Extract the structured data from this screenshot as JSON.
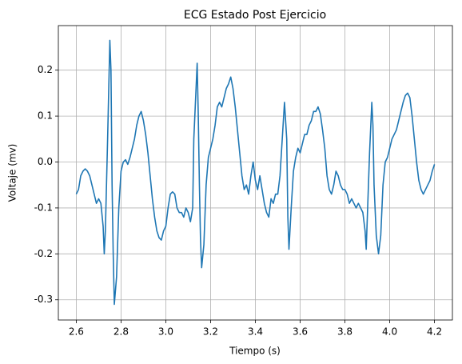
{
  "chart_data": {
    "type": "line",
    "title": "ECG Estado Post Ejercicio",
    "x_label": "Tiempo (s)",
    "y_label": "Voltaje (mv)",
    "x": [
      2.6,
      2.61,
      2.62,
      2.63,
      2.64,
      2.65,
      2.66,
      2.67,
      2.68,
      2.69,
      2.7,
      2.71,
      2.72,
      2.725,
      2.73,
      2.74,
      2.75,
      2.755,
      2.76,
      2.765,
      2.77,
      2.78,
      2.79,
      2.8,
      2.81,
      2.82,
      2.83,
      2.84,
      2.85,
      2.86,
      2.87,
      2.88,
      2.89,
      2.9,
      2.91,
      2.92,
      2.93,
      2.94,
      2.95,
      2.96,
      2.97,
      2.98,
      2.99,
      3.0,
      3.01,
      3.02,
      3.03,
      3.04,
      3.05,
      3.06,
      3.07,
      3.08,
      3.09,
      3.1,
      3.11,
      3.12,
      3.125,
      3.14,
      3.145,
      3.15,
      3.155,
      3.16,
      3.17,
      3.18,
      3.19,
      3.2,
      3.21,
      3.22,
      3.23,
      3.24,
      3.25,
      3.26,
      3.27,
      3.28,
      3.29,
      3.3,
      3.31,
      3.32,
      3.33,
      3.34,
      3.35,
      3.36,
      3.37,
      3.38,
      3.39,
      3.4,
      3.41,
      3.42,
      3.43,
      3.44,
      3.45,
      3.46,
      3.47,
      3.48,
      3.49,
      3.5,
      3.51,
      3.52,
      3.53,
      3.54,
      3.545,
      3.55,
      3.56,
      3.57,
      3.58,
      3.59,
      3.6,
      3.61,
      3.62,
      3.63,
      3.64,
      3.65,
      3.66,
      3.67,
      3.68,
      3.69,
      3.7,
      3.71,
      3.72,
      3.73,
      3.74,
      3.75,
      3.76,
      3.77,
      3.78,
      3.79,
      3.8,
      3.81,
      3.82,
      3.83,
      3.84,
      3.85,
      3.86,
      3.88,
      3.89,
      3.895,
      3.9,
      3.91,
      3.92,
      3.925,
      3.93,
      3.94,
      3.95,
      3.96,
      3.97,
      3.98,
      3.99,
      4.0,
      4.01,
      4.02,
      4.03,
      4.04,
      4.05,
      4.06,
      4.07,
      4.08,
      4.09,
      4.1,
      4.11,
      4.12,
      4.13,
      4.14,
      4.15,
      4.16,
      4.17,
      4.18,
      4.19,
      4.2
    ],
    "series": [
      {
        "name": "ECG",
        "color": "#1f77b4",
        "values": [
          -0.07,
          -0.06,
          -0.03,
          -0.02,
          -0.015,
          -0.02,
          -0.03,
          -0.05,
          -0.07,
          -0.09,
          -0.08,
          -0.09,
          -0.14,
          -0.2,
          -0.15,
          0.05,
          0.265,
          0.2,
          -0.05,
          -0.2,
          -0.31,
          -0.25,
          -0.1,
          -0.02,
          0.0,
          0.005,
          -0.005,
          0.01,
          0.03,
          0.05,
          0.08,
          0.1,
          0.11,
          0.09,
          0.06,
          0.02,
          -0.03,
          -0.08,
          -0.12,
          -0.15,
          -0.165,
          -0.17,
          -0.15,
          -0.14,
          -0.1,
          -0.07,
          -0.065,
          -0.07,
          -0.1,
          -0.11,
          -0.11,
          -0.12,
          -0.1,
          -0.11,
          -0.13,
          -0.1,
          0.05,
          0.215,
          0.1,
          -0.05,
          -0.17,
          -0.23,
          -0.18,
          -0.05,
          0.01,
          0.03,
          0.05,
          0.08,
          0.12,
          0.13,
          0.12,
          0.14,
          0.16,
          0.17,
          0.185,
          0.16,
          0.12,
          0.07,
          0.02,
          -0.03,
          -0.06,
          -0.05,
          -0.07,
          -0.03,
          0.0,
          -0.04,
          -0.06,
          -0.03,
          -0.06,
          -0.09,
          -0.11,
          -0.12,
          -0.08,
          -0.09,
          -0.07,
          -0.07,
          -0.03,
          0.05,
          0.13,
          0.05,
          -0.12,
          -0.19,
          -0.1,
          -0.02,
          0.01,
          0.03,
          0.02,
          0.04,
          0.06,
          0.06,
          0.08,
          0.09,
          0.11,
          0.11,
          0.12,
          0.105,
          0.07,
          0.03,
          -0.03,
          -0.06,
          -0.07,
          -0.05,
          -0.02,
          -0.03,
          -0.05,
          -0.06,
          -0.06,
          -0.07,
          -0.09,
          -0.08,
          -0.09,
          -0.1,
          -0.09,
          -0.11,
          -0.15,
          -0.19,
          -0.12,
          0.02,
          0.13,
          0.08,
          -0.05,
          -0.16,
          -0.2,
          -0.16,
          -0.05,
          0.0,
          0.01,
          0.03,
          0.05,
          0.06,
          0.07,
          0.09,
          0.11,
          0.13,
          0.145,
          0.15,
          0.14,
          0.1,
          0.05,
          0.0,
          -0.04,
          -0.06,
          -0.07,
          -0.06,
          -0.05,
          -0.04,
          -0.02,
          -0.005
        ]
      }
    ],
    "xlim": [
      2.52,
      4.28
    ],
    "ylim": [
      -0.344,
      0.297
    ],
    "xticks": [
      2.6,
      2.8,
      {
        "value": 3,
        "label": "3.0"
      },
      3.2,
      3.4,
      3.6,
      3.8,
      {
        "value": 4,
        "label": "4.0"
      },
      4.2
    ],
    "yticks": [
      -0.3,
      -0.2,
      -0.1,
      {
        "value": 0,
        "label": "0.0"
      },
      0.1,
      0.2
    ],
    "grid": true
  }
}
